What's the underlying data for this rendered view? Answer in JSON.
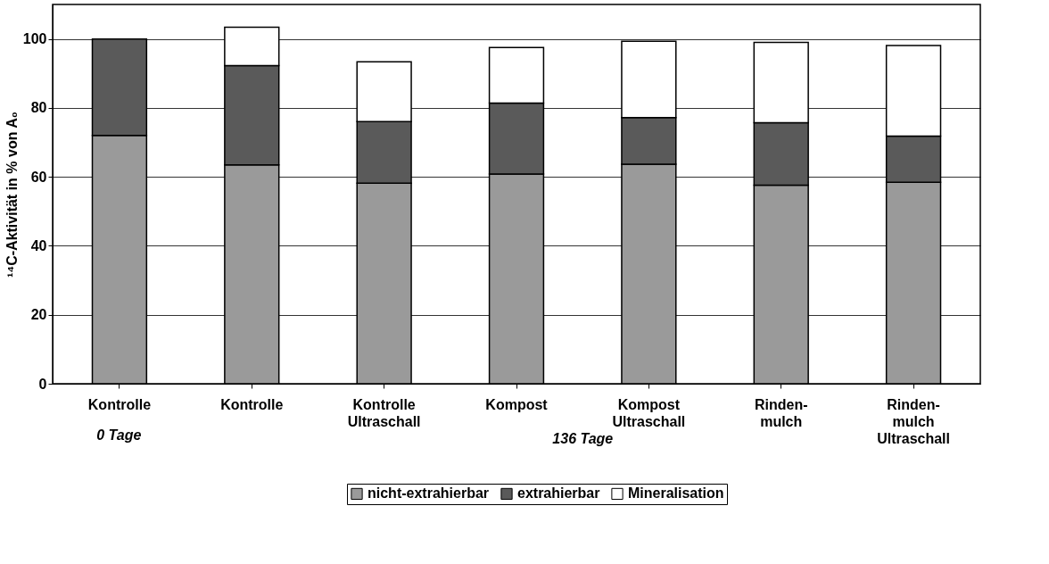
{
  "chart_data": {
    "type": "bar",
    "stacked": true,
    "ylabel": "¹⁴C-Aktivität in % von A₀",
    "categories": [
      "Kontrolle",
      "Kontrolle",
      "Kontrolle\nUltraschall",
      "Kompost",
      "Kompost\nUltraschall",
      "Rinden-\nmulch",
      "Rinden-\nmulch\nUltraschall"
    ],
    "series": [
      {
        "name": "nicht-extrahierbar",
        "color": "#9a9a9a",
        "values": [
          72,
          63.5,
          58.2,
          60.8,
          63.7,
          57.6,
          58.4
        ]
      },
      {
        "name": "extrahierbar",
        "color": "#5a5a5a",
        "values": [
          28,
          28.8,
          17.8,
          20.6,
          13.5,
          18.1,
          13.4
        ]
      },
      {
        "name": "Mineralisation",
        "color": "#ffffff",
        "values": [
          null,
          11.1,
          17.4,
          16.1,
          22.1,
          23.3,
          26.3
        ]
      }
    ],
    "ylim": [
      0,
      110
    ],
    "yticks": [
      0,
      20,
      40,
      60,
      80,
      100
    ],
    "grid": "y",
    "legend": "bottom",
    "annotations": [
      "0 Tage",
      "136 Tage"
    ]
  }
}
